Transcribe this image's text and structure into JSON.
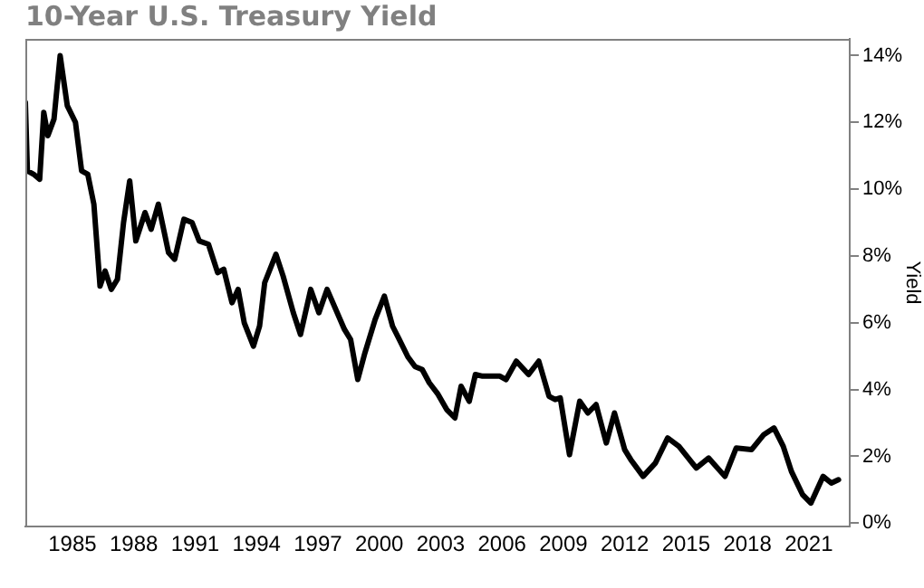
{
  "chart_data": {
    "type": "line",
    "title": "10-Year U.S. Treasury Yield",
    "ylabel": "Yield",
    "x": [
      1982.7,
      1982.8,
      1983.1,
      1983.4,
      1983.6,
      1983.8,
      1984.1,
      1984.4,
      1984.75,
      1985.15,
      1985.45,
      1985.75,
      1986.05,
      1986.35,
      1986.6,
      1986.9,
      1987.2,
      1987.5,
      1987.8,
      1988.1,
      1988.55,
      1988.85,
      1989.2,
      1989.7,
      1990.0,
      1990.45,
      1990.85,
      1991.2,
      1991.65,
      1992.1,
      1992.4,
      1992.8,
      1993.1,
      1993.4,
      1993.85,
      1994.15,
      1994.4,
      1994.95,
      1995.3,
      1995.8,
      1996.15,
      1996.65,
      1997.05,
      1997.45,
      1998.3,
      1998.6,
      1998.95,
      1999.3,
      1999.8,
      2000.25,
      2000.65,
      2000.95,
      2001.4,
      2001.75,
      2002.1,
      2002.45,
      2002.85,
      2003.3,
      2003.7,
      2004.0,
      2004.4,
      2004.7,
      2005.05,
      2005.5,
      2005.9,
      2006.2,
      2006.7,
      2007.3,
      2007.8,
      2008.3,
      2008.6,
      2008.85,
      2009.3,
      2009.8,
      2010.2,
      2010.6,
      2011.1,
      2011.5,
      2012.0,
      2012.3,
      2012.9,
      2013.5,
      2014.1,
      2014.65,
      2015.5,
      2016.1,
      2016.9,
      2017.45,
      2018.2,
      2018.8,
      2019.3,
      2019.75,
      2020.15,
      2020.7,
      2021.1,
      2021.7,
      2022.1,
      2022.45
    ],
    "series": [
      {
        "color": "#000000",
        "values": [
          12.6,
          10.55,
          10.45,
          10.3,
          12.3,
          11.6,
          12.1,
          14.0,
          12.5,
          12.0,
          10.55,
          10.45,
          9.55,
          7.1,
          7.55,
          7.0,
          7.3,
          9.0,
          10.25,
          8.45,
          9.3,
          8.8,
          9.55,
          8.1,
          7.9,
          9.1,
          9.0,
          8.45,
          8.35,
          7.5,
          7.6,
          6.6,
          7.0,
          6.0,
          5.3,
          5.9,
          7.2,
          8.05,
          7.4,
          6.3,
          5.65,
          7.0,
          6.3,
          7.0,
          5.8,
          5.5,
          4.3,
          5.1,
          6.1,
          6.8,
          5.9,
          5.54,
          4.98,
          4.69,
          4.6,
          4.2,
          3.88,
          3.4,
          3.15,
          4.1,
          3.65,
          4.45,
          4.4,
          4.4,
          4.4,
          4.3,
          4.85,
          4.45,
          4.85,
          3.8,
          3.7,
          3.75,
          2.05,
          3.65,
          3.3,
          3.55,
          2.4,
          3.3,
          2.2,
          1.9,
          1.4,
          1.8,
          2.55,
          2.3,
          1.65,
          1.95,
          1.4,
          2.25,
          2.2,
          2.65,
          2.85,
          2.3,
          1.55,
          0.85,
          0.6,
          1.4,
          1.2,
          1.3
        ]
      }
    ],
    "xlim": [
      1982.7,
      2023
    ],
    "xticks": [
      1985,
      1988,
      1991,
      1994,
      1997,
      2000,
      2003,
      2006,
      2009,
      2012,
      2015,
      2018,
      2021
    ],
    "ylim": [
      -0.1,
      14.5
    ],
    "yticks": [
      {
        "value": 0,
        "label": "0%"
      },
      {
        "value": 2,
        "label": "2%"
      },
      {
        "value": 4,
        "label": "4%"
      },
      {
        "value": 6,
        "label": "6%"
      },
      {
        "value": 8,
        "label": "8%"
      },
      {
        "value": 10,
        "label": "10%"
      },
      {
        "value": 12,
        "label": "12%"
      },
      {
        "value": 14,
        "label": "14%"
      }
    ],
    "grid": false,
    "legend": false,
    "marker": "none",
    "line_style": "solid"
  }
}
